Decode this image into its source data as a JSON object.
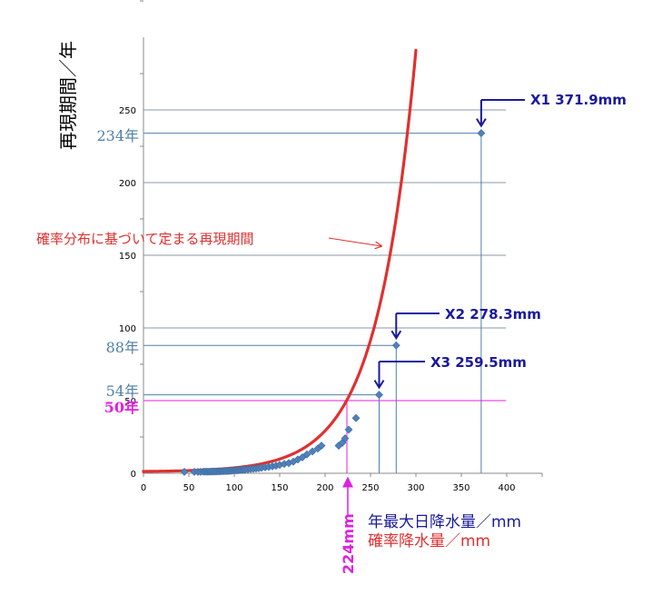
{
  "chart_data": {
    "type": "scatter",
    "ylabel": "再現期間／年",
    "xlabel": "年最大日降水量／mm",
    "xlabel2": "確率降水量／mm",
    "xlim": [
      0,
      440
    ],
    "ylim": [
      0,
      300
    ],
    "xticks": [
      0,
      50,
      100,
      150,
      200,
      250,
      300,
      350,
      400
    ],
    "yticks": [
      0,
      50,
      100,
      150,
      200,
      250
    ],
    "grid": "horizontal",
    "series": [
      {
        "type": "scatter",
        "color": "#4f81bd",
        "points": [
          [
            45,
            1.0
          ],
          [
            56,
            1.0
          ],
          [
            60,
            1.0
          ],
          [
            63,
            1.0
          ],
          [
            66,
            1.1
          ],
          [
            68,
            1.1
          ],
          [
            70,
            1.1
          ],
          [
            72,
            1.1
          ],
          [
            74,
            1.1
          ],
          [
            76,
            1.2
          ],
          [
            78,
            1.2
          ],
          [
            80,
            1.2
          ],
          [
            82,
            1.3
          ],
          [
            84,
            1.3
          ],
          [
            86,
            1.4
          ],
          [
            88,
            1.4
          ],
          [
            90,
            1.5
          ],
          [
            92,
            1.5
          ],
          [
            94,
            1.6
          ],
          [
            96,
            1.7
          ],
          [
            98,
            1.8
          ],
          [
            100,
            1.9
          ],
          [
            102,
            2.0
          ],
          [
            104,
            2.1
          ],
          [
            106,
            2.2
          ],
          [
            108,
            2.3
          ],
          [
            110,
            2.4
          ],
          [
            112,
            2.5
          ],
          [
            115,
            2.7
          ],
          [
            118,
            2.9
          ],
          [
            121,
            3.1
          ],
          [
            124,
            3.3
          ],
          [
            127,
            3.5
          ],
          [
            130,
            3.8
          ],
          [
            134,
            4.1
          ],
          [
            138,
            4.4
          ],
          [
            142,
            4.8
          ],
          [
            146,
            5.2
          ],
          [
            150,
            5.8
          ],
          [
            155,
            6.4
          ],
          [
            160,
            7.0
          ],
          [
            165,
            8.0
          ],
          [
            170,
            9.5
          ],
          [
            175,
            11.0
          ],
          [
            180,
            13.0
          ],
          [
            186,
            15.0
          ],
          [
            192,
            17.0
          ],
          [
            196,
            19.0
          ],
          [
            215,
            19.0
          ],
          [
            219,
            21.0
          ],
          [
            222,
            24.0
          ],
          [
            226,
            30.0
          ],
          [
            234,
            38.0
          ],
          [
            259.5,
            54.0
          ],
          [
            278.3,
            88.0
          ],
          [
            371.9,
            234.0
          ]
        ]
      },
      {
        "type": "line",
        "color": "#e03030",
        "formula": "T(x) = 1 + exp(0.0233 * x - 1.32)"
      }
    ],
    "reference_lines": [
      {
        "label": "234年",
        "x": 371.9,
        "y": 234,
        "color": "#4f7fa8"
      },
      {
        "label": "88年",
        "x": 278.3,
        "y": 88,
        "color": "#4f7fa8"
      },
      {
        "label": "54年",
        "x": 259.5,
        "y": 54,
        "color": "#4f7fa8"
      },
      {
        "label": "50年",
        "x": 224,
        "y": 50,
        "color": "#e020e0"
      }
    ],
    "annotations": [
      {
        "text": "X1  371.9mm",
        "x": 371.9,
        "y": 234
      },
      {
        "text": "X2  278.3mm",
        "x": 278.3,
        "y": 88
      },
      {
        "text": "X3  259.5mm",
        "x": 259.5,
        "y": 54
      },
      {
        "text": "確率分布に基づいて定まる再現期間",
        "color": "#e03030"
      },
      {
        "text": "224mm",
        "x": 224,
        "color": "#e020e0"
      }
    ]
  },
  "colors": {
    "axis_blue": "#1a1a9c",
    "axis_red": "#e03030",
    "magenta": "#e020e0",
    "steel": "#4f7fa8"
  }
}
